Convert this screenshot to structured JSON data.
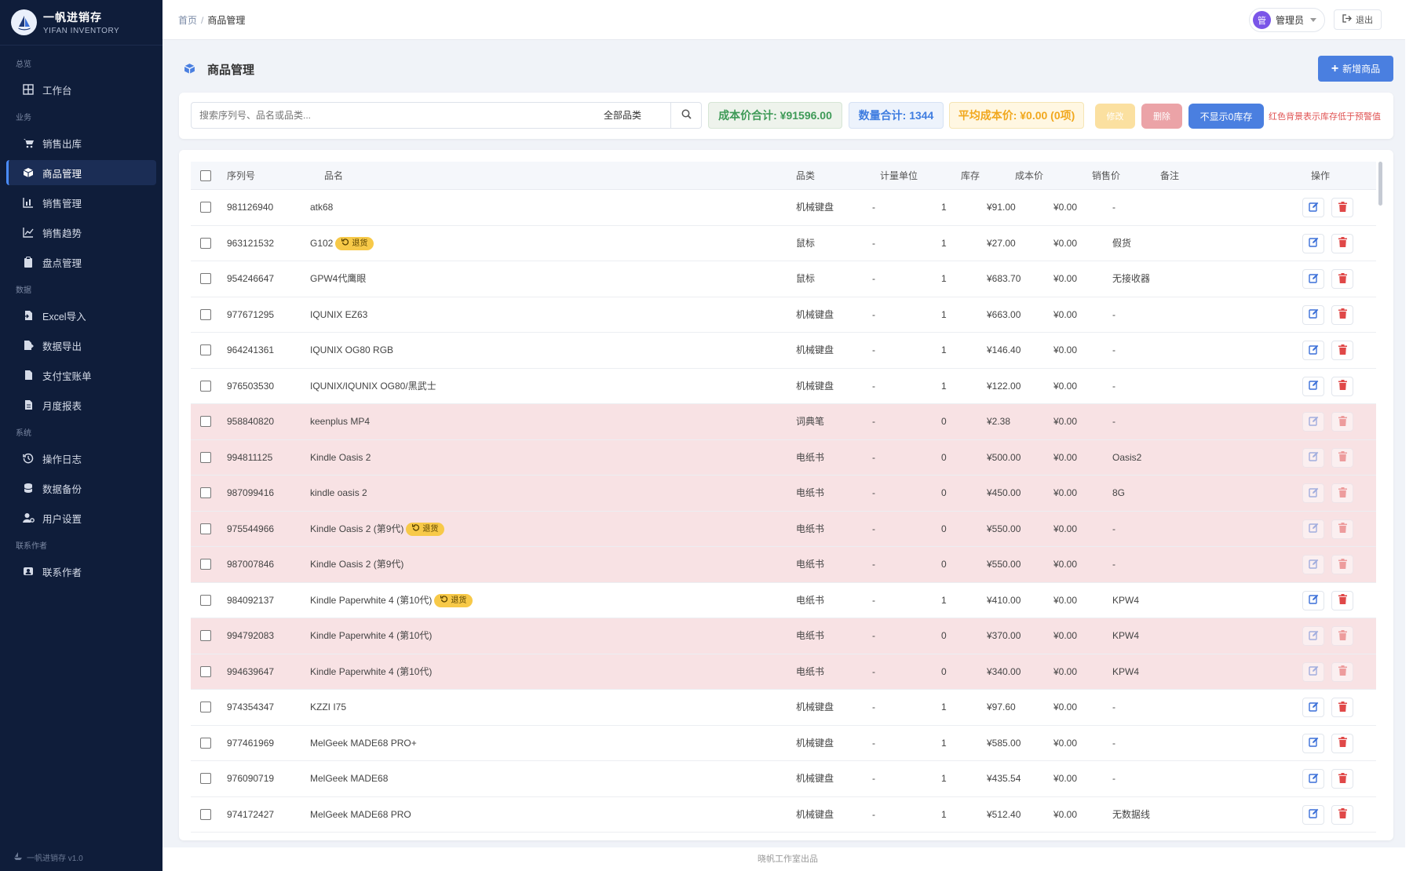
{
  "brand": {
    "name": "一帆进销存",
    "subtitle": "YIFAN INVENTORY"
  },
  "sidebar": {
    "sections": [
      {
        "label": "总览",
        "items": [
          {
            "label": "工作台",
            "icon": "dashboard-icon"
          }
        ]
      },
      {
        "label": "业务",
        "items": [
          {
            "label": "销售出库",
            "icon": "cart-icon"
          },
          {
            "label": "商品管理",
            "icon": "box-icon",
            "active": true
          },
          {
            "label": "销售管理",
            "icon": "bar-chart-icon"
          },
          {
            "label": "销售趋势",
            "icon": "line-chart-icon"
          },
          {
            "label": "盘点管理",
            "icon": "clipboard-icon"
          }
        ]
      },
      {
        "label": "数据",
        "items": [
          {
            "label": "Excel导入",
            "icon": "file-import-icon"
          },
          {
            "label": "数据导出",
            "icon": "file-export-icon"
          },
          {
            "label": "支付宝账单",
            "icon": "file-invoice-icon"
          },
          {
            "label": "月度报表",
            "icon": "file-report-icon"
          }
        ]
      },
      {
        "label": "系统",
        "items": [
          {
            "label": "操作日志",
            "icon": "history-icon"
          },
          {
            "label": "数据备份",
            "icon": "database-icon"
          },
          {
            "label": "用户设置",
            "icon": "user-gear-icon"
          }
        ]
      },
      {
        "label": "联系作者",
        "items": [
          {
            "label": "联系作者",
            "icon": "contact-icon"
          }
        ]
      }
    ],
    "footer": "一帆进销存 v1.0"
  },
  "breadcrumb": {
    "home": "首页",
    "separator": "/",
    "current": "商品管理"
  },
  "user": {
    "avatar": "管",
    "name": "管理员",
    "logout": "退出"
  },
  "page": {
    "title": "商品管理",
    "add_button": "新增商品"
  },
  "filters": {
    "search_placeholder": "搜索序列号、品名或品类...",
    "category": "全部品类",
    "cost_total": "成本价合计: ¥91596.00",
    "qty_total": "数量合计: 1344",
    "avg_cost": "平均成本价: ¥0.00 (0项)",
    "edit_btn": "修改",
    "delete_btn": "删除",
    "hide_zero_btn": "不显示0库存",
    "hint": "红色背景表示库存低于预警值"
  },
  "table": {
    "columns": [
      "序列号",
      "品名",
      "品类",
      "计量单位",
      "库存",
      "成本价",
      "销售价",
      "备注",
      "操作"
    ],
    "rows": [
      {
        "sn": "981126940",
        "name": "atk68",
        "badge": "",
        "cat": "机械键盘",
        "unit": "-",
        "stock": "1",
        "cost": "¥91.00",
        "price": "¥0.00",
        "note": "-",
        "warn": false
      },
      {
        "sn": "963121532",
        "name": "G102",
        "badge": "退货",
        "cat": "鼠标",
        "unit": "-",
        "stock": "1",
        "cost": "¥27.00",
        "price": "¥0.00",
        "note": "假货",
        "warn": false
      },
      {
        "sn": "954246647",
        "name": "GPW4代鹰眼",
        "badge": "",
        "cat": "鼠标",
        "unit": "-",
        "stock": "1",
        "cost": "¥683.70",
        "price": "¥0.00",
        "note": "无接收器",
        "warn": false
      },
      {
        "sn": "977671295",
        "name": "IQUNIX EZ63",
        "badge": "",
        "cat": "机械键盘",
        "unit": "-",
        "stock": "1",
        "cost": "¥663.00",
        "price": "¥0.00",
        "note": "-",
        "warn": false
      },
      {
        "sn": "964241361",
        "name": "IQUNIX OG80 RGB",
        "badge": "",
        "cat": "机械键盘",
        "unit": "-",
        "stock": "1",
        "cost": "¥146.40",
        "price": "¥0.00",
        "note": "-",
        "warn": false
      },
      {
        "sn": "976503530",
        "name": "IQUNIX/IQUNIX OG80/黑武士",
        "badge": "",
        "cat": "机械键盘",
        "unit": "-",
        "stock": "1",
        "cost": "¥122.00",
        "price": "¥0.00",
        "note": "-",
        "warn": false
      },
      {
        "sn": "958840820",
        "name": "keenplus MP4",
        "badge": "",
        "cat": "词典笔",
        "unit": "-",
        "stock": "0",
        "cost": "¥2.38",
        "price": "¥0.00",
        "note": "-",
        "warn": true
      },
      {
        "sn": "994811125",
        "name": "Kindle Oasis 2",
        "badge": "",
        "cat": "电纸书",
        "unit": "-",
        "stock": "0",
        "cost": "¥500.00",
        "price": "¥0.00",
        "note": "Oasis2",
        "warn": true
      },
      {
        "sn": "987099416",
        "name": "kindle oasis 2",
        "badge": "",
        "cat": "电纸书",
        "unit": "-",
        "stock": "0",
        "cost": "¥450.00",
        "price": "¥0.00",
        "note": "8G",
        "warn": true
      },
      {
        "sn": "975544966",
        "name": "Kindle Oasis 2 (第9代)",
        "badge": "退货",
        "cat": "电纸书",
        "unit": "-",
        "stock": "0",
        "cost": "¥550.00",
        "price": "¥0.00",
        "note": "-",
        "warn": true
      },
      {
        "sn": "987007846",
        "name": "Kindle Oasis 2 (第9代)",
        "badge": "",
        "cat": "电纸书",
        "unit": "-",
        "stock": "0",
        "cost": "¥550.00",
        "price": "¥0.00",
        "note": "-",
        "warn": true
      },
      {
        "sn": "984092137",
        "name": "Kindle Paperwhite 4 (第10代)",
        "badge": "退货",
        "cat": "电纸书",
        "unit": "-",
        "stock": "1",
        "cost": "¥410.00",
        "price": "¥0.00",
        "note": "KPW4",
        "warn": false
      },
      {
        "sn": "994792083",
        "name": "Kindle Paperwhite 4 (第10代)",
        "badge": "",
        "cat": "电纸书",
        "unit": "-",
        "stock": "0",
        "cost": "¥370.00",
        "price": "¥0.00",
        "note": "KPW4",
        "warn": true
      },
      {
        "sn": "994639647",
        "name": "Kindle Paperwhite 4 (第10代)",
        "badge": "",
        "cat": "电纸书",
        "unit": "-",
        "stock": "0",
        "cost": "¥340.00",
        "price": "¥0.00",
        "note": "KPW4",
        "warn": true
      },
      {
        "sn": "974354347",
        "name": "KZZI I75",
        "badge": "",
        "cat": "机械键盘",
        "unit": "-",
        "stock": "1",
        "cost": "¥97.60",
        "price": "¥0.00",
        "note": "-",
        "warn": false
      },
      {
        "sn": "977461969",
        "name": "MelGeek MADE68 PRO+",
        "badge": "",
        "cat": "机械键盘",
        "unit": "-",
        "stock": "1",
        "cost": "¥585.00",
        "price": "¥0.00",
        "note": "-",
        "warn": false
      },
      {
        "sn": "976090719",
        "name": "MelGeek MADE68",
        "badge": "",
        "cat": "机械键盘",
        "unit": "-",
        "stock": "1",
        "cost": "¥435.54",
        "price": "¥0.00",
        "note": "-",
        "warn": false
      },
      {
        "sn": "974172427",
        "name": "MelGeek MADE68 PRO",
        "badge": "",
        "cat": "机械键盘",
        "unit": "-",
        "stock": "1",
        "cost": "¥512.40",
        "price": "¥0.00",
        "note": "无数据线",
        "warn": false
      }
    ]
  },
  "footer": "晓帆工作室出品",
  "colors": {
    "sidebar_bg": "#0f1d3a",
    "accent": "#4a7fe0",
    "warn_row": "#f8e2e4",
    "badge": "#f7c948"
  }
}
